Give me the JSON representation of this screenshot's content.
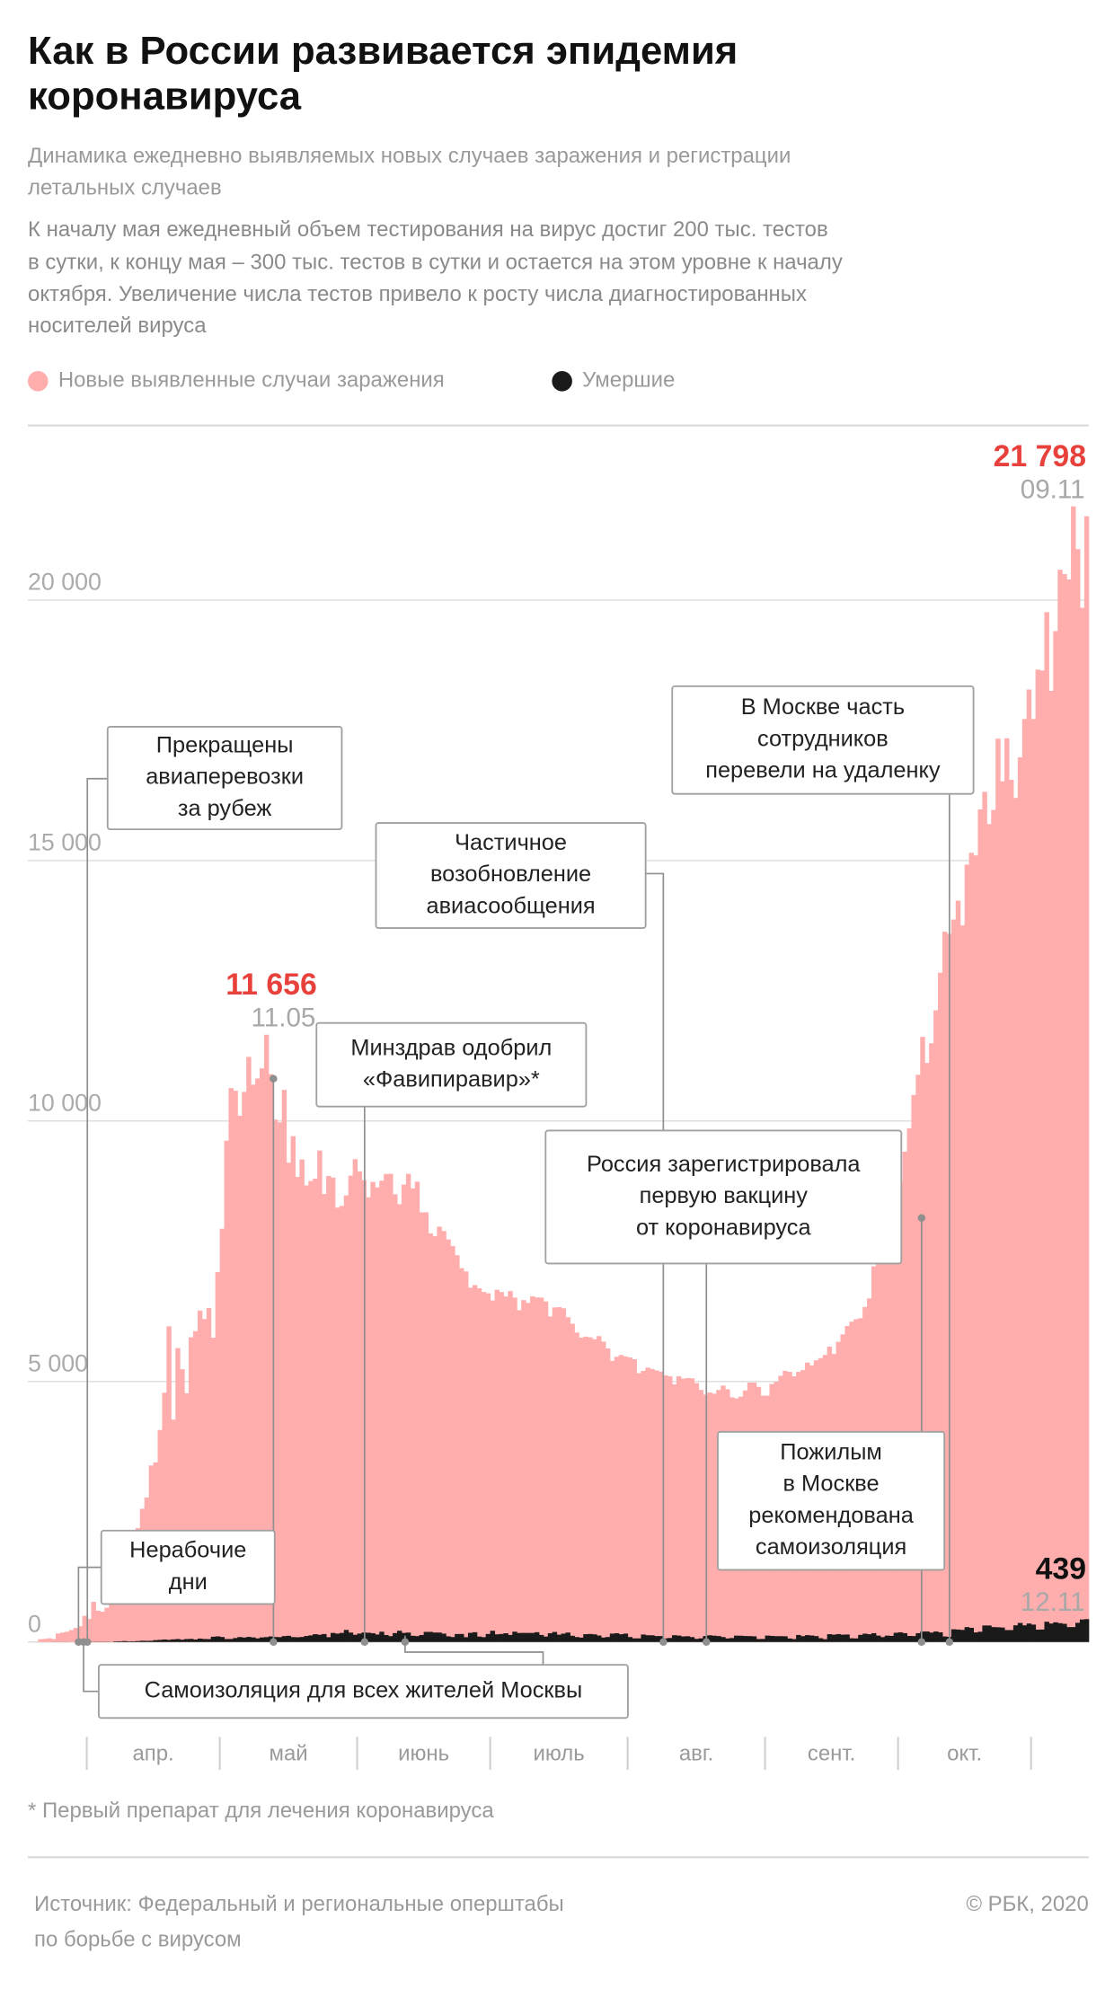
{
  "chart_data": {
    "type": "bar",
    "title": [
      "Как в России развивается эпидемия",
      "коронавируса"
    ],
    "subtitle": [
      "Динамика ежедневно выявляемых новых случаев заражения и регистрации",
      "летальных случаев"
    ],
    "note": [
      "К началу мая ежедневный объем тестирования на вирус достиг 200 тыс. тестов",
      "в сутки, к концу мая – 300 тыс. тестов в сутки и остается на этом уровне к началу",
      "октября. Увеличение числа тестов привело к росту числа диагностированных",
      "носителей вируса"
    ],
    "series": [
      {
        "name": "Новые выявленные случаи заражения",
        "color": "#ffadad",
        "values": [
          53,
          60,
          71,
          57,
          163,
          182,
          196,
          228,
          270,
          302,
          501,
          440,
          771,
          601,
          582,
          658,
          954,
          1154,
          1175,
          1459,
          1786,
          1667,
          2186,
          2558,
          2774,
          3388,
          3448,
          4070,
          4785,
          6060,
          4268,
          5642,
          5236,
          4774,
          5849,
          5966,
          6361,
          6198,
          6411,
          5841,
          7099,
          7933,
          9623,
          10633,
          10581,
          10102,
          10559,
          11231,
          10699,
          10817,
          11012,
          11656,
          10899,
          10028,
          9974,
          10598,
          9200,
          9709,
          8926,
          9263,
          8764,
          8849,
          8894,
          9434,
          8599,
          8946,
          8915,
          8338,
          8371,
          8572,
          8952,
          9268,
          9035,
          8863,
          8536,
          8831,
          8726,
          8855,
          8984,
          8985,
          8595,
          8404,
          8779,
          8987,
          8706,
          8835,
          8246,
          8248,
          7843,
          7790,
          7972,
          7889,
          7728,
          7600,
          7425,
          7176,
          7113,
          6800,
          6852,
          6791,
          6719,
          6693,
          6556,
          6760,
          6718,
          6632,
          6736,
          6611,
          6368,
          6562,
          6509,
          6635,
          6615,
          6611,
          6537,
          6248,
          6422,
          6428,
          6406,
          6234,
          6109,
          5940,
          5842,
          5862,
          5848,
          5811,
          5871,
          5765,
          5635,
          5395,
          5475,
          5509,
          5482,
          5462,
          5427,
          5159,
          5204,
          5267,
          5241,
          5212,
          5189,
          5118,
          5102,
          4945,
          5102,
          5057,
          5065,
          5061,
          4969,
          4839,
          4748,
          4790,
          4767,
          4838,
          4921,
          4852,
          4696,
          4676,
          4711,
          4829,
          4979,
          4980,
          4897,
          4729,
          4729,
          4952,
          4995,
          5110,
          5205,
          5185,
          5099,
          5185,
          5218,
          5363,
          5310,
          5406,
          5449,
          5509,
          5670,
          5529,
          5762,
          5905,
          6065,
          6148,
          6196,
          6215,
          6431,
          6595,
          7212,
          7523,
          7867,
          8135,
          8232,
          8481,
          8826,
          9412,
          9859,
          10499,
          10888,
          11615,
          11115,
          11493,
          12126,
          12846,
          13634,
          13592,
          13868,
          14231,
          13754,
          14922,
          15150,
          15099,
          15982,
          16319,
          15700,
          15971,
          17340,
          16521,
          17347,
          16550,
          16202,
          16981,
          17717,
          18283,
          17717,
          18665,
          18648,
          19768,
          18257,
          19404,
          20582,
          20498,
          20396,
          21798,
          20977,
          19851,
          21608
        ]
      },
      {
        "name": "Умершие",
        "color": "#1a1a1a",
        "values": [
          0,
          0,
          0,
          1,
          1,
          1,
          1,
          0,
          0,
          2,
          8,
          3,
          4,
          4,
          4,
          4,
          2,
          11,
          13,
          18,
          12,
          13,
          18,
          24,
          22,
          24,
          36,
          41,
          48,
          42,
          51,
          57,
          45,
          57,
          60,
          47,
          66,
          58,
          56,
          101,
          108,
          96,
          57,
          58,
          76,
          95,
          86,
          98,
          88,
          70,
          88,
          94,
          107,
          96,
          93,
          113,
          119,
          94,
          91,
          96,
          115,
          127,
          150,
          139,
          153,
          92,
          174,
          161,
          174,
          232,
          181,
          138,
          162,
          182,
          178,
          169,
          144,
          197,
          134,
          112,
          171,
          216,
          174,
          181,
          119,
          113,
          134,
          194,
          194,
          182,
          181,
          161,
          109,
          95,
          153,
          154,
          92,
          176,
          188,
          104,
          93,
          154,
          216,
          147,
          154,
          168,
          135,
          198,
          173,
          175,
          174,
          174,
          188,
          135,
          104,
          168,
          193,
          140,
          161,
          181,
          119,
          95,
          85,
          150,
          154,
          147,
          124,
          85,
          96,
          161,
          169,
          149,
          161,
          95,
          70,
          70,
          144,
          130,
          129,
          114,
          114,
          70,
          77,
          130,
          124,
          107,
          111,
          94,
          60,
          70,
          114,
          129,
          121,
          114,
          95,
          68,
          76,
          122,
          120,
          115,
          113,
          109,
          57,
          59,
          123,
          117,
          112,
          112,
          110,
          68,
          56,
          135,
          112,
          132,
          125,
          113,
          73,
          53,
          150,
          141,
          152,
          141,
          144,
          72,
          69,
          137,
          160,
          150,
          169,
          123,
          94,
          122,
          117,
          177,
          186,
          170,
          117,
          114,
          169,
          201,
          202,
          181,
          202,
          186,
          106,
          99,
          244,
          239,
          232,
          286,
          272,
          184,
          197,
          317,
          317,
          286,
          283,
          278,
          229,
          229,
          320,
          366,
          320,
          355,
          334,
          237,
          239,
          389,
          355,
          378,
          362,
          349,
          286,
          286,
          368,
          432,
          439
        ]
      }
    ],
    "ylim": [
      0,
      22000
    ],
    "yticks": [
      0,
      {
        "value": 5000,
        "label": "5 000"
      },
      {
        "value": 10000,
        "label": "10 000"
      },
      {
        "value": 15000,
        "label": "15 000"
      },
      {
        "value": 20000,
        "label": "20 000"
      }
    ],
    "grid": true,
    "xticks": [
      {
        "value": 11,
        "label": "апр."
      },
      {
        "value": 41,
        "label": "май"
      },
      {
        "value": 72,
        "label": "июнь"
      },
      {
        "value": 102,
        "label": "июль"
      },
      {
        "value": 133,
        "label": "авг."
      },
      {
        "value": 164,
        "label": "сент."
      },
      {
        "value": 194,
        "label": "окт."
      }
    ],
    "peak_labels": [
      {
        "value": 21798,
        "label": "21 798",
        "date": "09.11",
        "color": "#e8413c"
      },
      {
        "value": 11656,
        "label": "11 656",
        "date": "11.05",
        "color": "#e8413c"
      },
      {
        "value": 439,
        "label": "439",
        "date": "12.11",
        "color": "#111111"
      }
    ],
    "events": [
      [
        "Прекращены",
        "авиаперевозки",
        "за рубеж"
      ],
      [
        "Частичное",
        "возобновление",
        "авиасообщения"
      ],
      [
        "Минздрав одобрил",
        "«Фавипиравир»*"
      ],
      [
        "В Москве часть",
        "сотрудников",
        "перевели на удаленку"
      ],
      [
        "Россия зарегистрировала",
        "первую вакцину",
        "от коронавируса"
      ],
      [
        "Пожилым",
        "в Москве",
        "рекомендована",
        "самоизоляция"
      ],
      [
        "Нерабочие",
        "дни"
      ],
      [
        "Самоизоляция для всех жителей Москвы"
      ]
    ],
    "footnote": "* Первый препарат для лечения коронавируса",
    "source": [
      "Источник: Федеральный и региональные оперштабы",
      "по борьбе с вирусом"
    ],
    "copyright": "© РБК, 2020"
  }
}
